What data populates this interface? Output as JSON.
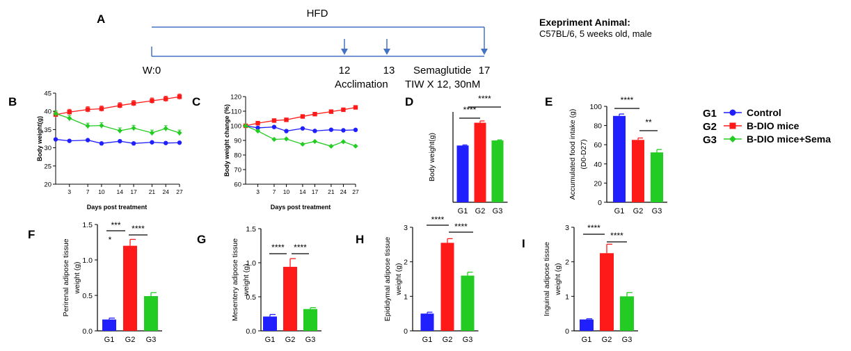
{
  "colors": {
    "g1": "#1f1fff",
    "g2": "#ff1a1a",
    "g3": "#22cc22",
    "timeline": "#4472c4"
  },
  "panel_letters": {
    "a": "A",
    "b": "B",
    "c": "C",
    "d": "D",
    "e": "E",
    "f": "F",
    "g": "G",
    "h": "H",
    "i": "I"
  },
  "timeline": {
    "hfd_label": "HFD",
    "week0": "W:0",
    "week12": "12",
    "week13": "13",
    "week17": "17",
    "acclimation": "Acclimation",
    "drug": "Semaglutide",
    "regimen": "TIW X 12, 30nM",
    "animal_title": "Exepriment Animal:",
    "animal_desc": "C57BL/6, 5 weeks old, male"
  },
  "legend": [
    {
      "code": "G1",
      "name": "Control",
      "marker": "circle"
    },
    {
      "code": "G2",
      "name": "B-DIO mice",
      "marker": "square"
    },
    {
      "code": "G3",
      "name": "B-DIO mice+Sema",
      "marker": "diamond"
    }
  ],
  "chart_data": [
    {
      "id": "B",
      "type": "line",
      "xlabel": "Days post treatment",
      "ylabel": "Body weight(g)",
      "xlim": [
        0,
        27
      ],
      "ylim": [
        20,
        45
      ],
      "xticks": [
        3,
        7,
        10,
        14,
        17,
        21,
        24,
        27
      ],
      "yticks": [
        20,
        25,
        30,
        35,
        40,
        45
      ],
      "x": [
        0,
        3,
        7,
        10,
        14,
        17,
        21,
        24,
        27
      ],
      "series": [
        {
          "name": "G1",
          "values": [
            32.3,
            31.9,
            32.1,
            31.2,
            31.8,
            31.2,
            31.5,
            31.3,
            31.4
          ]
        },
        {
          "name": "G2",
          "values": [
            39.1,
            39.8,
            40.5,
            40.7,
            41.6,
            42.2,
            42.9,
            43.4,
            44.0
          ]
        },
        {
          "name": "G3",
          "values": [
            39.4,
            38.1,
            36.0,
            36.1,
            34.7,
            35.4,
            34.1,
            35.3,
            34.1
          ]
        }
      ]
    },
    {
      "id": "C",
      "type": "line",
      "xlabel": "Days post treatment",
      "ylabel": "Body weight change (%)",
      "xlim": [
        0,
        27
      ],
      "ylim": [
        60,
        120
      ],
      "xticks": [
        3,
        7,
        10,
        14,
        17,
        21,
        24,
        27
      ],
      "yticks": [
        60,
        70,
        80,
        90,
        100,
        110,
        120
      ],
      "x": [
        0,
        3,
        7,
        10,
        14,
        17,
        21,
        24,
        27
      ],
      "series": [
        {
          "name": "G1",
          "values": [
            100,
            98.6,
            99.2,
            96.4,
            98.2,
            96.5,
            97.3,
            96.9,
            97.2
          ]
        },
        {
          "name": "G2",
          "values": [
            100,
            101.8,
            103.6,
            104.1,
            106.4,
            108.0,
            109.7,
            111.0,
            112.6
          ]
        },
        {
          "name": "G3",
          "values": [
            100,
            96.4,
            90.7,
            91.0,
            87.4,
            89.3,
            86.0,
            89.1,
            86.1
          ]
        }
      ]
    },
    {
      "id": "D",
      "type": "bar",
      "categories": [
        "G1",
        "G2",
        "G3"
      ],
      "values": [
        31.4,
        44.0,
        34.2
      ],
      "errors": [
        0.3,
        1.0,
        0.3
      ],
      "ylabel": "Body weight(g)",
      "ylim": [
        0,
        50
      ],
      "significance": [
        {
          "from": 0,
          "to": 1,
          "label": "****"
        },
        {
          "from": 1,
          "to": 2,
          "label": "****"
        }
      ]
    },
    {
      "id": "E",
      "type": "bar",
      "categories": [
        "G1",
        "G2",
        "G3"
      ],
      "values": [
        90,
        65,
        52
      ],
      "errors": [
        2,
        2,
        3
      ],
      "ylabel": "Accumulated food intake (g)",
      "ylabel2": "(D0-D27)",
      "ylim": [
        0,
        100
      ],
      "yticks": [
        0,
        20,
        40,
        60,
        80,
        100
      ],
      "significance": [
        {
          "from": 0,
          "to": 1,
          "label": "****"
        },
        {
          "from": 1,
          "to": 2,
          "label": "**"
        }
      ]
    },
    {
      "id": "F",
      "type": "bar",
      "categories": [
        "G1",
        "G2",
        "G3"
      ],
      "values": [
        0.16,
        1.2,
        0.49
      ],
      "errors": [
        0.02,
        0.09,
        0.05
      ],
      "ylabel": "Perirenal adipose tissue",
      "ylabel2": "weight (g)",
      "ylim": [
        0,
        1.5
      ],
      "yticks": [
        0.0,
        0.5,
        1.0,
        1.5
      ],
      "tick_labels": [
        "0.0",
        "0.5",
        "1.0",
        "1.5"
      ],
      "significance": [
        {
          "from": 0,
          "to": 1,
          "label": "***",
          "note": "*"
        },
        {
          "from": 1,
          "to": 2,
          "label": "****"
        }
      ]
    },
    {
      "id": "G",
      "type": "bar",
      "categories": [
        "G1",
        "G2",
        "G3"
      ],
      "values": [
        0.21,
        0.94,
        0.32
      ],
      "errors": [
        0.03,
        0.12,
        0.02
      ],
      "ylabel": "Mesentery adipose tissue",
      "ylabel2": "weight (g)",
      "ylim": [
        0,
        1.5
      ],
      "yticks": [
        0.0,
        0.5,
        1.0,
        1.5
      ],
      "tick_labels": [
        "0.0",
        "0.5",
        "1.0",
        "1.5"
      ],
      "significance": [
        {
          "from": 0,
          "to": 1,
          "label": "****"
        },
        {
          "from": 1,
          "to": 2,
          "label": "****"
        }
      ]
    },
    {
      "id": "H",
      "type": "bar",
      "categories": [
        "G1",
        "G2",
        "G3"
      ],
      "values": [
        0.5,
        2.55,
        1.6
      ],
      "errors": [
        0.04,
        0.12,
        0.1
      ],
      "ylabel": "Epididymal adipose tissue",
      "ylabel2": "weight (g)",
      "ylim": [
        0,
        3
      ],
      "yticks": [
        0,
        1,
        2,
        3
      ],
      "tick_labels": [
        "0",
        "1",
        "2",
        "3"
      ],
      "significance": [
        {
          "from": 0,
          "to": 1,
          "label": "****"
        },
        {
          "from": 1,
          "to": 2,
          "label": "****"
        }
      ]
    },
    {
      "id": "I",
      "type": "bar",
      "categories": [
        "G1",
        "G2",
        "G3"
      ],
      "values": [
        0.33,
        2.25,
        1.0
      ],
      "errors": [
        0.02,
        0.26,
        0.11
      ],
      "ylabel": "Inguinal adipose tissue",
      "ylabel2": "weight (g)",
      "ylim": [
        0,
        3
      ],
      "yticks": [
        0,
        1,
        2,
        3
      ],
      "tick_labels": [
        "0",
        "1",
        "2",
        "3"
      ],
      "significance": [
        {
          "from": 0,
          "to": 1,
          "label": "****"
        },
        {
          "from": 1,
          "to": 2,
          "label": "****"
        }
      ]
    }
  ]
}
